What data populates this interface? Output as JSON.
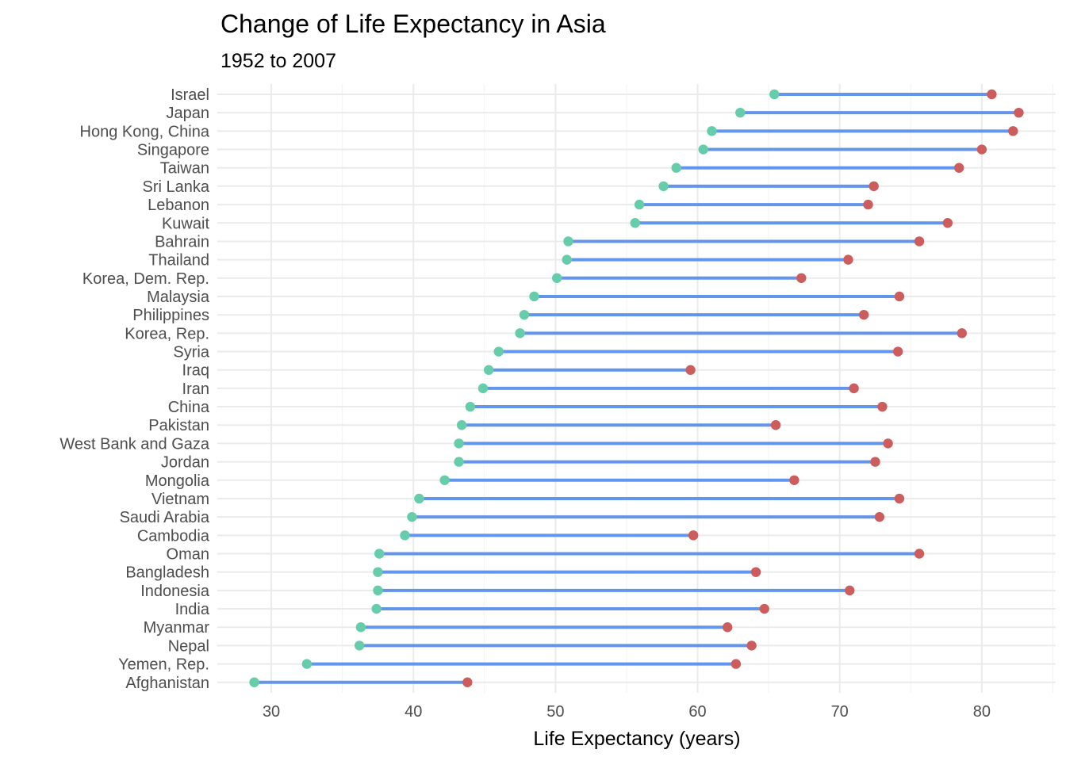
{
  "chart_data": {
    "type": "dumbbell",
    "title": "Change of Life Expectancy in Asia",
    "subtitle": "1952 to 2007",
    "xlabel": "Life Expectancy (years)",
    "ylabel": "",
    "xlim": [
      26.2,
      85.2
    ],
    "xticks": [
      30,
      40,
      50,
      60,
      70,
      80
    ],
    "grid": true,
    "colors": {
      "start": "#66cdaa",
      "end": "#cd5c5c",
      "segment": "#6495ed"
    },
    "categories": [
      "Israel",
      "Japan",
      "Hong Kong, China",
      "Singapore",
      "Taiwan",
      "Sri Lanka",
      "Lebanon",
      "Kuwait",
      "Bahrain",
      "Thailand",
      "Korea, Dem. Rep.",
      "Malaysia",
      "Philippines",
      "Korea, Rep.",
      "Syria",
      "Iraq",
      "Iran",
      "China",
      "Pakistan",
      "West Bank and Gaza",
      "Jordan",
      "Mongolia",
      "Vietnam",
      "Saudi Arabia",
      "Cambodia",
      "Oman",
      "Bangladesh",
      "Indonesia",
      "India",
      "Myanmar",
      "Nepal",
      "Yemen, Rep.",
      "Afghanistan"
    ],
    "series": [
      {
        "values": [
          65.4,
          63.0,
          61.0,
          60.4,
          58.5,
          57.6,
          55.9,
          55.6,
          50.9,
          50.8,
          50.1,
          48.5,
          47.8,
          47.5,
          46.0,
          45.3,
          44.9,
          44.0,
          43.4,
          43.2,
          43.2,
          42.2,
          40.4,
          39.9,
          39.4,
          37.6,
          37.5,
          37.5,
          37.4,
          36.3,
          36.2,
          32.5,
          28.8
        ]
      },
      {
        "values": [
          80.7,
          82.6,
          82.2,
          80.0,
          78.4,
          72.4,
          72.0,
          77.6,
          75.6,
          70.6,
          67.3,
          74.2,
          71.7,
          78.6,
          74.1,
          59.5,
          71.0,
          73.0,
          65.5,
          73.4,
          72.5,
          66.8,
          74.2,
          72.8,
          59.7,
          75.6,
          64.1,
          70.7,
          64.7,
          62.1,
          63.8,
          62.7,
          43.8
        ]
      }
    ]
  }
}
